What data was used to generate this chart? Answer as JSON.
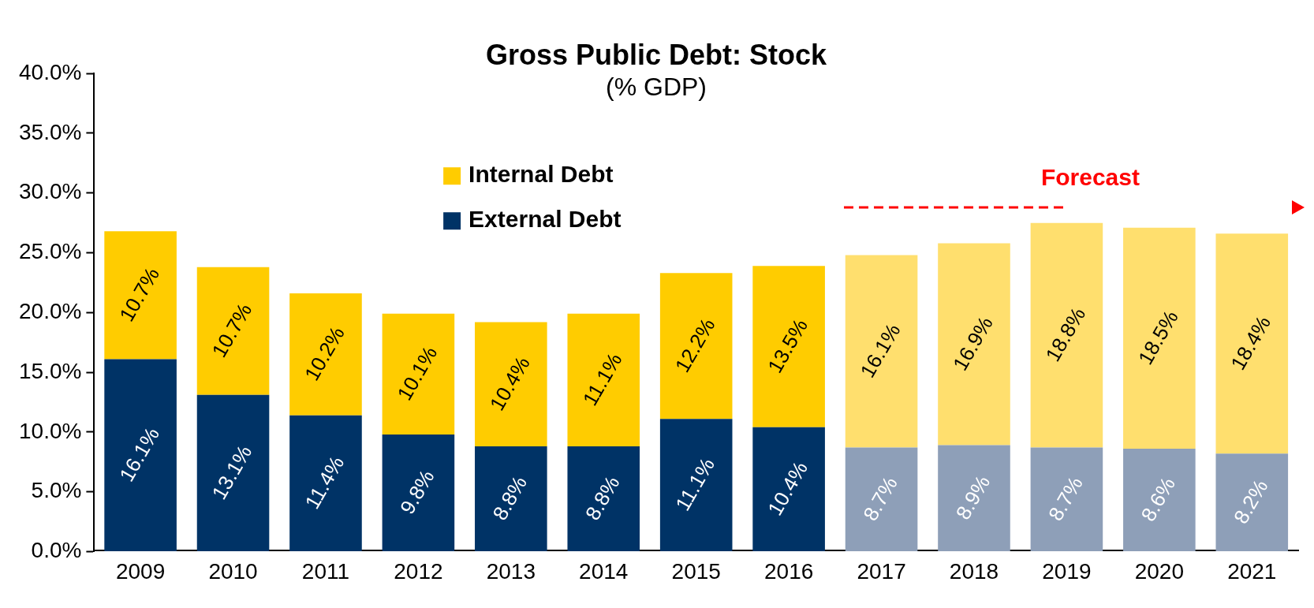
{
  "chart_data": {
    "type": "bar",
    "title": "Gross Public Debt: Stock",
    "subtitle": "(% GDP)",
    "stacked": true,
    "categories": [
      "2009",
      "2010",
      "2011",
      "2012",
      "2013",
      "2014",
      "2015",
      "2016",
      "2017",
      "2018",
      "2019",
      "2020",
      "2021"
    ],
    "series": [
      {
        "name": "External Debt",
        "color": "#003366",
        "colors": [
          "#003366",
          "#003366",
          "#003366",
          "#003366",
          "#003366",
          "#003366",
          "#003366",
          "#003366",
          "#8e9fb8",
          "#8e9fb8",
          "#8e9fb8",
          "#8e9fb8",
          "#8e9fb8"
        ],
        "values": [
          16.1,
          13.1,
          11.4,
          9.8,
          8.8,
          8.8,
          11.1,
          10.4,
          8.7,
          8.9,
          8.7,
          8.6,
          8.2
        ],
        "value_labels": [
          "16.1%",
          "13.1%",
          "11.4%",
          "9.8%",
          "8.8%",
          "8.8%",
          "11.1%",
          "10.4%",
          "8.7%",
          "8.9%",
          "8.7%",
          "8.6%",
          "8.2%"
        ]
      },
      {
        "name": "Internal Debt",
        "color": "#ffcc00",
        "colors": [
          "#ffcc00",
          "#ffcc00",
          "#ffcc00",
          "#ffcc00",
          "#ffcc00",
          "#ffcc00",
          "#ffcc00",
          "#ffcc00",
          "#ffdf6e",
          "#ffdf6e",
          "#ffdf6e",
          "#ffdf6e",
          "#ffdf6e"
        ],
        "values": [
          10.7,
          10.7,
          10.2,
          10.1,
          10.4,
          11.1,
          12.2,
          13.5,
          16.1,
          16.9,
          18.8,
          18.5,
          18.4
        ],
        "value_labels": [
          "10.7%",
          "10.7%",
          "10.2%",
          "10.1%",
          "10.4%",
          "11.1%",
          "12.2%",
          "13.5%",
          "16.1%",
          "16.9%",
          "18.8%",
          "18.5%",
          "18.4%"
        ]
      }
    ],
    "ylim": [
      0,
      40
    ],
    "yticks": [
      {
        "value": 0,
        "label": "0.0%"
      },
      {
        "value": 5,
        "label": "5.0%"
      },
      {
        "value": 10,
        "label": "10.0%"
      },
      {
        "value": 15,
        "label": "15.0%"
      },
      {
        "value": 20,
        "label": "20.0%"
      },
      {
        "value": 25,
        "label": "25.0%"
      },
      {
        "value": 30,
        "label": "30.0%"
      },
      {
        "value": 35,
        "label": "35.0%"
      },
      {
        "value": 40,
        "label": "40.0%"
      }
    ],
    "grid": false,
    "legend": "top left",
    "annotations": [
      "Forecast"
    ]
  }
}
